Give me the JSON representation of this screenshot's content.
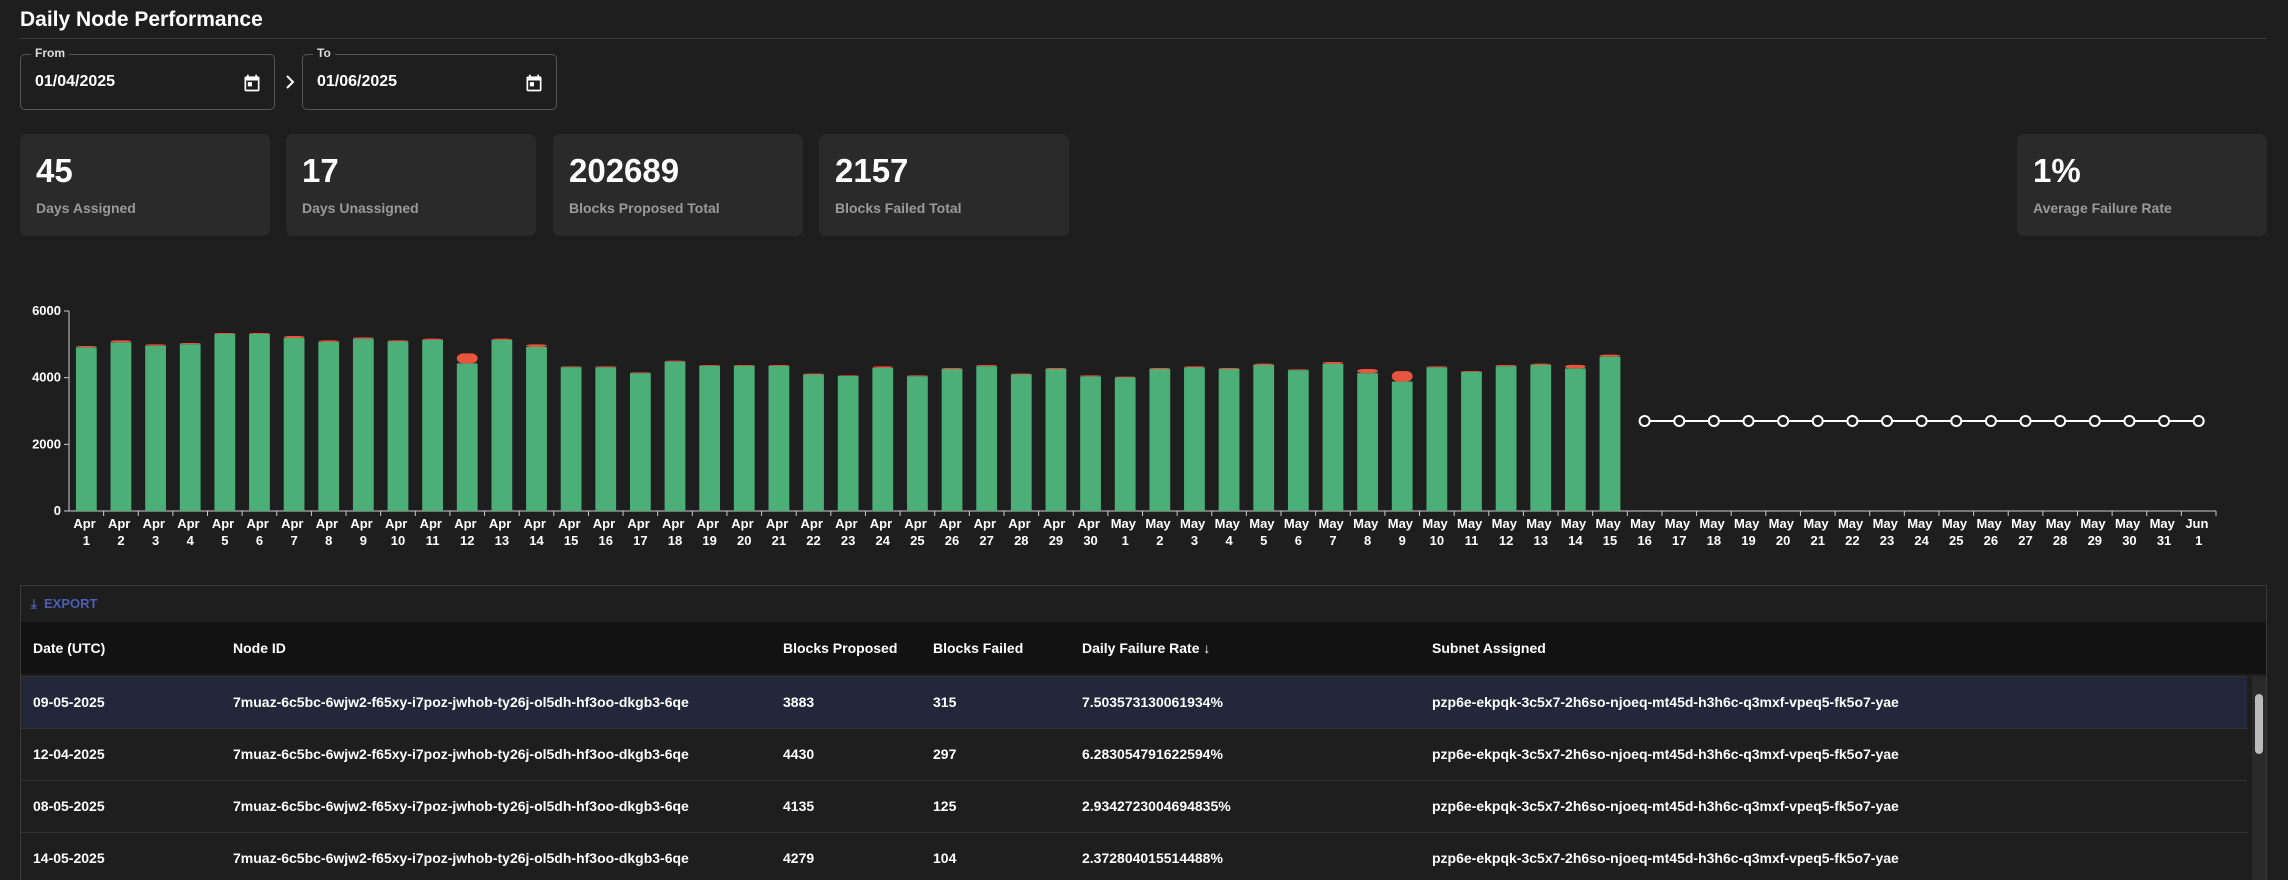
{
  "header": {
    "title": "Daily Node Performance"
  },
  "filters": {
    "from": {
      "label": "From",
      "value": "01/04/2025"
    },
    "to": {
      "label": "To",
      "value": "01/06/2025"
    }
  },
  "stats": [
    {
      "value": "45",
      "label": "Days Assigned"
    },
    {
      "value": "17",
      "label": "Days Unassigned"
    },
    {
      "value": "202689",
      "label": "Blocks Proposed Total"
    },
    {
      "value": "2157",
      "label": "Blocks Failed Total"
    },
    {
      "value": "1%",
      "label": "Average Failure Rate"
    }
  ],
  "chart_data": {
    "type": "bar",
    "stacked": true,
    "categories": [
      "Apr 1",
      "Apr 2",
      "Apr 3",
      "Apr 4",
      "Apr 5",
      "Apr 6",
      "Apr 7",
      "Apr 8",
      "Apr 9",
      "Apr 10",
      "Apr 11",
      "Apr 12",
      "Apr 13",
      "Apr 14",
      "Apr 15",
      "Apr 16",
      "Apr 17",
      "Apr 18",
      "Apr 19",
      "Apr 20",
      "Apr 21",
      "Apr 22",
      "Apr 23",
      "Apr 24",
      "Apr 25",
      "Apr 26",
      "Apr 27",
      "Apr 28",
      "Apr 29",
      "Apr 30",
      "May 1",
      "May 2",
      "May 3",
      "May 4",
      "May 5",
      "May 6",
      "May 7",
      "May 8",
      "May 9",
      "May 10",
      "May 11",
      "May 12",
      "May 13",
      "May 14",
      "May 15",
      "May 16",
      "May 17",
      "May 18",
      "May 19",
      "May 20",
      "May 21",
      "May 22",
      "May 23",
      "May 24",
      "May 25",
      "May 26",
      "May 27",
      "May 28",
      "May 29",
      "May 30",
      "May 31",
      "Jun 1"
    ],
    "series": [
      {
        "color": "#4caf78",
        "values": [
          4910,
          5060,
          4955,
          5005,
          5310,
          5310,
          5190,
          5070,
          5170,
          5085,
          5130,
          4430,
          5130,
          4920,
          4315,
          4310,
          4135,
          4480,
          4355,
          4355,
          4350,
          4095,
          4050,
          4290,
          4045,
          4260,
          4345,
          4095,
          4260,
          4040,
          4005,
          4260,
          4305,
          4260,
          4380,
          4225,
          4410,
          4135,
          3883,
          4310,
          4175,
          4345,
          4380,
          4279,
          4630,
          null,
          null,
          null,
          null,
          null,
          null,
          null,
          null,
          null,
          null,
          null,
          null,
          null,
          null,
          null,
          null,
          null
        ]
      },
      {
        "color": "#e8553e",
        "values": [
          40,
          60,
          45,
          35,
          30,
          30,
          60,
          50,
          40,
          35,
          40,
          297,
          40,
          80,
          25,
          30,
          25,
          30,
          25,
          25,
          30,
          25,
          20,
          50,
          25,
          30,
          35,
          25,
          30,
          30,
          25,
          30,
          35,
          30,
          40,
          25,
          60,
          125,
          315,
          30,
          25,
          35,
          40,
          104,
          60,
          null,
          null,
          null,
          null,
          null,
          null,
          null,
          null,
          null,
          null,
          null,
          null,
          null,
          null,
          null,
          null,
          null
        ]
      },
      {
        "type": "line",
        "color": "#ffffff",
        "values": [
          null,
          null,
          null,
          null,
          null,
          null,
          null,
          null,
          null,
          null,
          null,
          null,
          null,
          null,
          null,
          null,
          null,
          null,
          null,
          null,
          null,
          null,
          null,
          null,
          null,
          null,
          null,
          null,
          null,
          null,
          null,
          null,
          null,
          null,
          null,
          null,
          null,
          null,
          null,
          null,
          null,
          null,
          null,
          null,
          null,
          2700,
          2700,
          2700,
          2700,
          2700,
          2700,
          2700,
          2700,
          2700,
          2700,
          2700,
          2700,
          2700,
          2700,
          2700,
          2700,
          2700
        ]
      }
    ],
    "ylim": [
      0,
      6000
    ],
    "yticks": [
      0,
      2000,
      4000,
      6000
    ],
    "grid": false
  },
  "table": {
    "export": "EXPORT",
    "columns": [
      "Date (UTC)",
      "Node ID",
      "Blocks Proposed",
      "Blocks Failed",
      "Daily Failure Rate",
      "Subnet Assigned"
    ],
    "rows": [
      [
        "09-05-2025",
        "7muaz-6c5bc-6wjw2-f65xy-i7poz-jwhob-ty26j-ol5dh-hf3oo-dkgb3-6qe",
        "3883",
        "315",
        "7.503573130061934%",
        "pzp6e-ekpqk-3c5x7-2h6so-njoeq-mt45d-h3h6c-q3mxf-vpeq5-fk5o7-yae"
      ],
      [
        "12-04-2025",
        "7muaz-6c5bc-6wjw2-f65xy-i7poz-jwhob-ty26j-ol5dh-hf3oo-dkgb3-6qe",
        "4430",
        "297",
        "6.283054791622594%",
        "pzp6e-ekpqk-3c5x7-2h6so-njoeq-mt45d-h3h6c-q3mxf-vpeq5-fk5o7-yae"
      ],
      [
        "08-05-2025",
        "7muaz-6c5bc-6wjw2-f65xy-i7poz-jwhob-ty26j-ol5dh-hf3oo-dkgb3-6qe",
        "4135",
        "125",
        "2.9342723004694835%",
        "pzp6e-ekpqk-3c5x7-2h6so-njoeq-mt45d-h3h6c-q3mxf-vpeq5-fk5o7-yae"
      ],
      [
        "14-05-2025",
        "7muaz-6c5bc-6wjw2-f65xy-i7poz-jwhob-ty26j-ol5dh-hf3oo-dkgb3-6qe",
        "4279",
        "104",
        "2.372804015514488%",
        "pzp6e-ekpqk-3c5x7-2h6so-njoeq-mt45d-h3h6c-q3mxf-vpeq5-fk5o7-yae"
      ]
    ]
  }
}
